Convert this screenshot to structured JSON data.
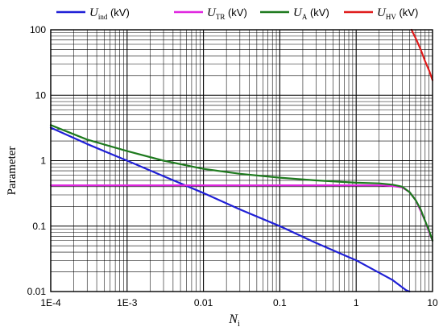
{
  "chart_data": {
    "type": "line",
    "xscale": "log",
    "yscale": "log",
    "xlim": [
      0.0001,
      10
    ],
    "ylim": [
      0.01,
      100
    ],
    "grid": true,
    "legend_placement": "top",
    "xlabel": {
      "main": "N",
      "sub": "i"
    },
    "ylabel": "Parameter",
    "xticks": [
      {
        "value": 0.0001,
        "label": "1E-4"
      },
      {
        "value": 0.001,
        "label": "1E-3"
      },
      {
        "value": 0.01,
        "label": "0.01"
      },
      {
        "value": 0.1,
        "label": "0.1"
      },
      {
        "value": 1,
        "label": "1"
      },
      {
        "value": 10,
        "label": "10"
      }
    ],
    "yticks": [
      {
        "value": 0.01,
        "label": "0.01"
      },
      {
        "value": 0.1,
        "label": "0.1"
      },
      {
        "value": 1,
        "label": "1"
      },
      {
        "value": 10,
        "label": "10"
      },
      {
        "value": 100,
        "label": "100"
      }
    ],
    "series": [
      {
        "name": "U_ind (kV)",
        "label_main": "U",
        "label_sub": "ind",
        "label_unit": " (kV)",
        "color": "#1f1fd6",
        "points": [
          [
            0.0001,
            3.2
          ],
          [
            0.0003,
            1.8
          ],
          [
            0.001,
            1.0
          ],
          [
            0.003,
            0.58
          ],
          [
            0.01,
            0.32
          ],
          [
            0.03,
            0.18
          ],
          [
            0.1,
            0.1
          ],
          [
            0.3,
            0.055
          ],
          [
            1,
            0.03
          ],
          [
            3,
            0.015
          ],
          [
            4.5,
            0.0105
          ],
          [
            5,
            0.01
          ]
        ]
      },
      {
        "name": "U_TR (kV)",
        "label_main": "U",
        "label_sub": "TR",
        "label_unit": " (kV)",
        "color": "#e026e0",
        "points": [
          [
            0.0001,
            0.42
          ],
          [
            0.01,
            0.42
          ],
          [
            1,
            0.42
          ],
          [
            2,
            0.42
          ],
          [
            3,
            0.41
          ],
          [
            4,
            0.39
          ],
          [
            5,
            0.33
          ],
          [
            6,
            0.25
          ],
          [
            7,
            0.17
          ],
          [
            8,
            0.12
          ],
          [
            9,
            0.08
          ],
          [
            10,
            0.06
          ]
        ]
      },
      {
        "name": "U_A (kV)",
        "label_main": "U",
        "label_sub": "A",
        "label_unit": " (kV)",
        "color": "#1e7a1e",
        "points": [
          [
            0.0001,
            3.5
          ],
          [
            0.0003,
            2.1
          ],
          [
            0.001,
            1.4
          ],
          [
            0.003,
            1.0
          ],
          [
            0.01,
            0.75
          ],
          [
            0.03,
            0.63
          ],
          [
            0.1,
            0.55
          ],
          [
            0.3,
            0.5
          ],
          [
            1,
            0.46
          ],
          [
            2,
            0.45
          ],
          [
            3,
            0.43
          ],
          [
            4,
            0.4
          ],
          [
            5,
            0.33
          ],
          [
            6,
            0.25
          ],
          [
            7,
            0.18
          ],
          [
            8,
            0.12
          ],
          [
            9,
            0.085
          ],
          [
            10,
            0.06
          ]
        ]
      },
      {
        "name": "U_HV (kV)",
        "label_main": "U",
        "label_sub": "HV",
        "label_unit": " (kV)",
        "color": "#e01b1b",
        "points": [
          [
            5.3,
            100
          ],
          [
            6,
            75
          ],
          [
            7,
            50
          ],
          [
            8,
            33
          ],
          [
            9,
            24
          ],
          [
            10,
            17
          ]
        ]
      }
    ]
  }
}
